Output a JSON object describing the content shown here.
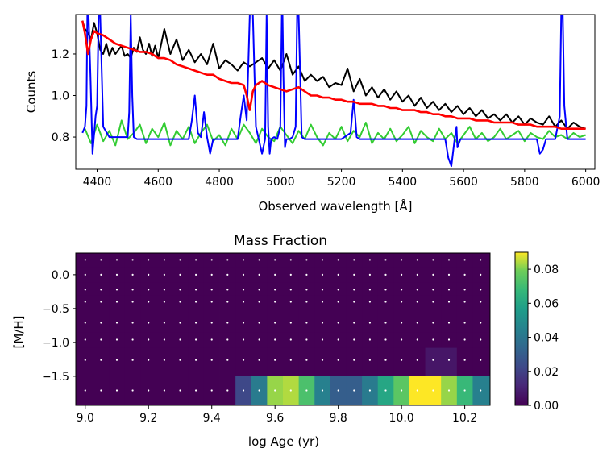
{
  "chart_data": [
    {
      "type": "line",
      "title": "",
      "xlabel": "Observed wavelength [Å]",
      "ylabel": "Counts",
      "xlim": [
        4330,
        6030
      ],
      "ylim": [
        0.645,
        1.39
      ],
      "xticks": [
        4400,
        4600,
        4800,
        5000,
        5200,
        5400,
        5600,
        5800,
        6000
      ],
      "yticks": [
        0.8,
        1.0,
        1.2
      ],
      "grid": false,
      "series": [
        {
          "color": "#000000",
          "role": "observed spectrum",
          "x": [
            4352,
            4360,
            4370,
            4380,
            4390,
            4400,
            4410,
            4420,
            4430,
            4440,
            4450,
            4460,
            4470,
            4480,
            4490,
            4500,
            4510,
            4520,
            4530,
            4540,
            4550,
            4560,
            4570,
            4580,
            4590,
            4600,
            4620,
            4640,
            4660,
            4680,
            4700,
            4720,
            4740,
            4760,
            4780,
            4800,
            4820,
            4840,
            4860,
            4880,
            4900,
            4920,
            4940,
            4960,
            4980,
            5000,
            5020,
            5040,
            5060,
            5080,
            5100,
            5120,
            5140,
            5160,
            5180,
            5200,
            5220,
            5240,
            5260,
            5280,
            5300,
            5320,
            5340,
            5360,
            5380,
            5400,
            5420,
            5440,
            5460,
            5480,
            5500,
            5520,
            5540,
            5560,
            5580,
            5600,
            5620,
            5640,
            5660,
            5680,
            5700,
            5720,
            5740,
            5760,
            5780,
            5800,
            5820,
            5840,
            5860,
            5880,
            5900,
            5920,
            5940,
            5960,
            5980,
            6000
          ],
          "y": [
            1.36,
            1.32,
            1.3,
            1.27,
            1.35,
            1.3,
            1.22,
            1.2,
            1.25,
            1.19,
            1.23,
            1.2,
            1.22,
            1.24,
            1.19,
            1.2,
            1.18,
            1.23,
            1.21,
            1.28,
            1.22,
            1.2,
            1.25,
            1.19,
            1.24,
            1.18,
            1.32,
            1.2,
            1.27,
            1.17,
            1.22,
            1.16,
            1.2,
            1.15,
            1.25,
            1.13,
            1.17,
            1.15,
            1.12,
            1.16,
            1.14,
            1.16,
            1.18,
            1.13,
            1.17,
            1.12,
            1.2,
            1.1,
            1.14,
            1.07,
            1.1,
            1.07,
            1.09,
            1.04,
            1.06,
            1.05,
            1.13,
            1.02,
            1.08,
            1.0,
            1.04,
            0.99,
            1.03,
            0.98,
            1.02,
            0.97,
            1.0,
            0.95,
            0.99,
            0.94,
            0.97,
            0.93,
            0.96,
            0.92,
            0.95,
            0.91,
            0.94,
            0.9,
            0.93,
            0.89,
            0.91,
            0.88,
            0.91,
            0.87,
            0.9,
            0.86,
            0.89,
            0.87,
            0.86,
            0.9,
            0.85,
            0.88,
            0.84,
            0.87,
            0.85,
            0.84
          ]
        },
        {
          "color": "#ff0000",
          "role": "model fit",
          "x": [
            4352,
            4360,
            4370,
            4380,
            4390,
            4400,
            4420,
            4440,
            4460,
            4480,
            4500,
            4520,
            4540,
            4560,
            4580,
            4600,
            4620,
            4640,
            4660,
            4680,
            4700,
            4720,
            4740,
            4760,
            4780,
            4800,
            4820,
            4840,
            4860,
            4880,
            4890,
            4900,
            4910,
            4920,
            4940,
            4960,
            4980,
            5000,
            5020,
            5040,
            5060,
            5080,
            5100,
            5120,
            5140,
            5160,
            5180,
            5200,
            5220,
            5240,
            5260,
            5280,
            5300,
            5320,
            5340,
            5360,
            5380,
            5400,
            5420,
            5440,
            5460,
            5480,
            5500,
            5520,
            5540,
            5560,
            5580,
            5600,
            5620,
            5640,
            5660,
            5680,
            5700,
            5720,
            5740,
            5760,
            5780,
            5800,
            5820,
            5840,
            5860,
            5880,
            5900,
            5920,
            5940,
            5960,
            5980,
            6000
          ],
          "y": [
            1.36,
            1.3,
            1.2,
            1.27,
            1.31,
            1.3,
            1.29,
            1.27,
            1.25,
            1.24,
            1.23,
            1.22,
            1.21,
            1.21,
            1.2,
            1.18,
            1.18,
            1.17,
            1.15,
            1.14,
            1.13,
            1.12,
            1.11,
            1.1,
            1.1,
            1.08,
            1.07,
            1.06,
            1.06,
            1.05,
            1.0,
            0.93,
            1.02,
            1.05,
            1.07,
            1.05,
            1.04,
            1.03,
            1.02,
            1.03,
            1.04,
            1.02,
            1.0,
            1.0,
            0.99,
            0.99,
            0.98,
            0.98,
            0.97,
            0.97,
            0.96,
            0.96,
            0.96,
            0.95,
            0.95,
            0.94,
            0.94,
            0.93,
            0.93,
            0.93,
            0.92,
            0.92,
            0.91,
            0.91,
            0.9,
            0.9,
            0.89,
            0.89,
            0.89,
            0.88,
            0.88,
            0.88,
            0.87,
            0.87,
            0.87,
            0.87,
            0.86,
            0.86,
            0.86,
            0.85,
            0.85,
            0.85,
            0.85,
            0.84,
            0.84,
            0.84,
            0.84,
            0.84
          ]
        },
        {
          "color": "#0000ff",
          "role": "gas emission component",
          "x": [
            4352,
            4360,
            4365,
            4368,
            4372,
            4378,
            4385,
            4395,
            4400,
            4405,
            4410,
            4420,
            4440,
            4460,
            4480,
            4500,
            4505,
            4510,
            4515,
            4520,
            4530,
            4560,
            4600,
            4640,
            4680,
            4700,
            4710,
            4720,
            4730,
            4740,
            4750,
            4760,
            4770,
            4780,
            4800,
            4840,
            4860,
            4870,
            4880,
            4890,
            4900,
            4910,
            4920,
            4940,
            4950,
            4955,
            4960,
            4965,
            4970,
            4980,
            4990,
            5000,
            5005,
            5007,
            5010,
            5015,
            5020,
            5030,
            5040,
            5050,
            5055,
            5060,
            5065,
            5070,
            5080,
            5100,
            5150,
            5200,
            5230,
            5240,
            5245,
            5250,
            5260,
            5280,
            5300,
            5400,
            5500,
            5540,
            5550,
            5560,
            5570,
            5577,
            5580,
            5590,
            5600,
            5620,
            5650,
            5700,
            5800,
            5840,
            5850,
            5860,
            5870,
            5880,
            5900,
            5915,
            5920,
            5925,
            5930,
            5940,
            5950,
            6000
          ],
          "y": [
            0.82,
            0.85,
            0.95,
            1.39,
            1.39,
            1.1,
            0.72,
            0.9,
            0.95,
            1.39,
            1.39,
            0.85,
            0.8,
            0.8,
            0.8,
            0.8,
            0.92,
            1.39,
            1.0,
            0.8,
            0.79,
            0.79,
            0.79,
            0.79,
            0.79,
            0.79,
            0.88,
            1.0,
            0.82,
            0.8,
            0.92,
            0.8,
            0.72,
            0.79,
            0.79,
            0.79,
            0.79,
            0.9,
            1.0,
            0.88,
            1.39,
            1.39,
            0.85,
            0.72,
            0.79,
            1.39,
            0.85,
            0.72,
            0.79,
            0.8,
            0.79,
            0.85,
            1.39,
            1.39,
            1.1,
            0.75,
            0.79,
            0.79,
            0.8,
            0.85,
            1.39,
            1.39,
            1.1,
            0.8,
            0.79,
            0.79,
            0.79,
            0.79,
            0.82,
            0.98,
            0.9,
            0.8,
            0.79,
            0.79,
            0.79,
            0.79,
            0.79,
            0.79,
            0.7,
            0.66,
            0.78,
            0.85,
            0.75,
            0.79,
            0.79,
            0.79,
            0.79,
            0.79,
            0.79,
            0.79,
            0.72,
            0.74,
            0.79,
            0.79,
            0.79,
            0.9,
            1.39,
            1.39,
            0.95,
            0.79,
            0.79,
            0.79
          ]
        },
        {
          "color": "#33cc33",
          "role": "residuals",
          "x": [
            4360,
            4380,
            4400,
            4420,
            4440,
            4460,
            4480,
            4500,
            4520,
            4540,
            4560,
            4580,
            4600,
            4620,
            4640,
            4660,
            4680,
            4700,
            4720,
            4740,
            4760,
            4780,
            4800,
            4820,
            4840,
            4860,
            4880,
            4900,
            4920,
            4940,
            4960,
            4980,
            5000,
            5020,
            5040,
            5060,
            5080,
            5100,
            5120,
            5140,
            5160,
            5180,
            5200,
            5220,
            5240,
            5260,
            5280,
            5300,
            5320,
            5340,
            5360,
            5380,
            5400,
            5420,
            5440,
            5460,
            5480,
            5500,
            5520,
            5540,
            5560,
            5580,
            5600,
            5620,
            5640,
            5660,
            5680,
            5700,
            5720,
            5740,
            5760,
            5780,
            5800,
            5820,
            5840,
            5860,
            5880,
            5900,
            5920,
            5940,
            5960,
            5980,
            6000
          ],
          "y": [
            0.84,
            0.77,
            0.86,
            0.78,
            0.83,
            0.76,
            0.88,
            0.79,
            0.82,
            0.86,
            0.77,
            0.84,
            0.8,
            0.87,
            0.76,
            0.83,
            0.79,
            0.85,
            0.77,
            0.82,
            0.86,
            0.78,
            0.81,
            0.76,
            0.84,
            0.79,
            0.86,
            0.82,
            0.77,
            0.84,
            0.8,
            0.78,
            0.85,
            0.81,
            0.77,
            0.83,
            0.79,
            0.86,
            0.8,
            0.76,
            0.82,
            0.79,
            0.85,
            0.78,
            0.83,
            0.8,
            0.87,
            0.77,
            0.82,
            0.79,
            0.84,
            0.78,
            0.81,
            0.85,
            0.77,
            0.83,
            0.8,
            0.78,
            0.84,
            0.79,
            0.82,
            0.77,
            0.81,
            0.85,
            0.79,
            0.82,
            0.78,
            0.8,
            0.84,
            0.79,
            0.81,
            0.83,
            0.78,
            0.82,
            0.8,
            0.79,
            0.83,
            0.8,
            0.81,
            0.79,
            0.82,
            0.8,
            0.81
          ]
        }
      ]
    },
    {
      "type": "heatmap",
      "title": "Mass Fraction",
      "xlabel": "log Age (yr)",
      "ylabel": "[M/H]",
      "xlim": [
        8.97,
        10.28
      ],
      "ylim": [
        -1.93,
        0.32
      ],
      "xticks": [
        9.0,
        9.2,
        9.4,
        9.6,
        9.8,
        10.0,
        10.2
      ],
      "yticks": [
        0.0,
        -0.5,
        -1.0,
        -1.5
      ],
      "x_centers": [
        9.0,
        9.05,
        9.1,
        9.15,
        9.2,
        9.25,
        9.3,
        9.35,
        9.4,
        9.45,
        9.5,
        9.55,
        9.6,
        9.65,
        9.7,
        9.75,
        9.8,
        9.85,
        9.9,
        9.95,
        10.0,
        10.05,
        10.1,
        10.15,
        10.2,
        10.25
      ],
      "y_centers": [
        0.22,
        0.0,
        -0.22,
        -0.4,
        -0.71,
        -0.96,
        -1.26,
        -1.71
      ],
      "y_edges": [
        0.32,
        0.11,
        -0.11,
        -0.31,
        -0.55,
        -0.85,
        -1.08,
        -1.5,
        -1.93
      ],
      "colormap": "viridis",
      "vmin": 0.0,
      "vmax": 0.09,
      "colorbar_ticks": [
        "0.00",
        "0.02",
        "0.04",
        "0.06",
        "0.08"
      ],
      "values": [
        [
          0,
          0,
          0,
          0,
          0,
          0,
          0,
          0,
          0,
          0,
          0,
          0,
          0,
          0,
          0,
          0,
          0,
          0,
          0,
          0,
          0,
          0,
          0,
          0,
          0,
          0
        ],
        [
          0,
          0,
          0,
          0,
          0,
          0,
          0,
          0,
          0,
          0,
          0,
          0,
          0,
          0,
          0,
          0,
          0,
          0,
          0,
          0,
          0,
          0,
          0,
          0,
          0,
          0
        ],
        [
          0,
          0,
          0,
          0,
          0,
          0,
          0,
          0,
          0,
          0,
          0,
          0,
          0,
          0,
          0,
          0,
          0,
          0,
          0,
          0,
          0,
          0,
          0,
          0,
          0,
          0
        ],
        [
          0,
          0,
          0,
          0,
          0,
          0,
          0,
          0,
          0,
          0,
          0,
          0,
          0,
          0,
          0,
          0,
          0,
          0,
          0,
          0,
          0,
          0,
          0,
          0,
          0,
          0
        ],
        [
          0,
          0,
          0,
          0,
          0,
          0,
          0,
          0,
          0,
          0,
          0,
          0,
          0,
          0,
          0,
          0,
          0,
          0,
          0,
          0,
          0,
          0,
          0,
          0,
          0,
          0
        ],
        [
          0,
          0,
          0,
          0,
          0,
          0,
          0,
          0,
          0,
          0,
          0,
          0,
          0,
          0,
          0,
          0,
          0,
          0,
          0,
          0,
          0,
          0,
          0,
          0,
          0,
          0
        ],
        [
          0,
          0,
          0,
          0,
          0,
          0,
          0,
          0,
          0,
          0,
          0,
          0,
          0,
          0,
          0,
          0,
          0,
          0,
          0,
          0,
          0,
          0,
          0.006,
          0.006,
          0,
          0
        ],
        [
          0,
          0,
          0,
          0,
          0,
          0,
          0,
          0,
          0,
          0,
          0.022,
          0.042,
          0.082,
          0.084,
          0.072,
          0.044,
          0.03,
          0.03,
          0.042,
          0.06,
          0.075,
          0.09,
          0.09,
          0.082,
          0.068,
          0.044
        ]
      ]
    }
  ]
}
